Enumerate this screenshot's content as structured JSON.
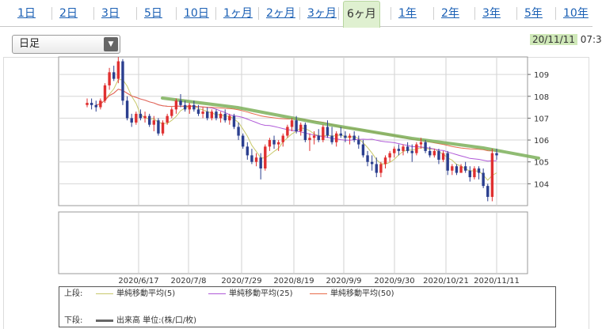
{
  "tabs": [
    {
      "label": "1日",
      "x": 22
    },
    {
      "label": "2日",
      "x": 75
    },
    {
      "label": "3日",
      "x": 128
    },
    {
      "label": "5日",
      "x": 182
    },
    {
      "label": "10日",
      "x": 232
    },
    {
      "label": "1ヶ月",
      "x": 282
    },
    {
      "label": "2ヶ月",
      "x": 336
    },
    {
      "label": "3ヶ月",
      "x": 388
    },
    {
      "label": "6ヶ月",
      "x": 437,
      "active": true
    },
    {
      "label": "1年",
      "x": 503
    },
    {
      "label": "2年",
      "x": 557
    },
    {
      "label": "3年",
      "x": 609
    },
    {
      "label": "5年",
      "x": 662
    },
    {
      "label": "10年",
      "x": 711
    }
  ],
  "select": {
    "value": "日足"
  },
  "date_badge": {
    "date": "20/11/11",
    "time": "07:3"
  },
  "legend": {
    "upper_label": "上段:",
    "lower_label": "下段:",
    "items": [
      {
        "label": "単純移動平均(5)",
        "color": "#c8c86a"
      },
      {
        "label": "単純移動平均(25)",
        "color": "#b05ad8"
      },
      {
        "label": "単純移動平均(50)",
        "color": "#e86a4a"
      }
    ],
    "volume": {
      "label": "出来高 単位:(株/口/枚)",
      "color": "#666666"
    }
  },
  "chart_data": {
    "type": "candlestick",
    "x_ticks": [
      "2020/6/17",
      "2020/7/8",
      "2020/7/29",
      "2020/8/19",
      "2020/9/9",
      "2020/9/30",
      "2020/10/21",
      "2020/11/11"
    ],
    "y_ticks": [
      104,
      105,
      106,
      107,
      108,
      109
    ],
    "ylim": [
      103.0,
      109.8
    ],
    "series": [
      {
        "name": "単純移動平均(5)",
        "color": "#c8c86a"
      },
      {
        "name": "単純移動平均(25)",
        "color": "#b05ad8"
      },
      {
        "name": "単純移動平均(50)",
        "color": "#e86a4a"
      }
    ],
    "candles": [
      [
        107.6,
        107.9,
        107.5,
        107.7
      ],
      [
        107.7,
        107.9,
        107.4,
        107.6
      ],
      [
        107.6,
        107.8,
        107.3,
        107.5
      ],
      [
        107.5,
        107.9,
        107.4,
        107.8
      ],
      [
        107.8,
        108.6,
        107.7,
        108.5
      ],
      [
        108.5,
        109.3,
        108.3,
        109.1
      ],
      [
        109.1,
        109.4,
        108.7,
        108.8
      ],
      [
        108.8,
        109.8,
        108.6,
        109.6
      ],
      [
        109.6,
        109.7,
        107.6,
        107.8
      ],
      [
        107.8,
        108.0,
        106.9,
        107.0
      ],
      [
        107.0,
        107.2,
        106.6,
        106.8
      ],
      [
        106.8,
        107.3,
        106.7,
        107.2
      ],
      [
        107.2,
        107.4,
        106.9,
        107.0
      ],
      [
        107.0,
        107.3,
        106.8,
        107.1
      ],
      [
        107.1,
        107.2,
        106.6,
        106.7
      ],
      [
        106.7,
        107.1,
        106.4,
        106.9
      ],
      [
        106.9,
        107.0,
        106.2,
        106.3
      ],
      [
        106.3,
        106.9,
        106.2,
        106.8
      ],
      [
        106.8,
        107.2,
        106.7,
        107.1
      ],
      [
        107.1,
        107.5,
        107.0,
        107.4
      ],
      [
        107.4,
        107.9,
        107.2,
        107.8
      ],
      [
        107.8,
        108.1,
        107.5,
        107.6
      ],
      [
        107.6,
        107.8,
        107.3,
        107.4
      ],
      [
        107.4,
        107.7,
        107.2,
        107.6
      ],
      [
        107.6,
        107.8,
        107.3,
        107.4
      ],
      [
        107.4,
        107.6,
        107.1,
        107.2
      ],
      [
        107.2,
        107.5,
        107.0,
        107.3
      ],
      [
        107.3,
        107.5,
        106.9,
        107.0
      ],
      [
        107.0,
        107.4,
        106.9,
        107.3
      ],
      [
        107.3,
        107.4,
        106.9,
        107.0
      ],
      [
        107.0,
        107.3,
        106.8,
        107.2
      ],
      [
        107.2,
        107.4,
        106.8,
        106.9
      ],
      [
        106.9,
        107.2,
        106.7,
        107.1
      ],
      [
        107.1,
        107.2,
        106.5,
        106.6
      ],
      [
        106.6,
        106.8,
        106.0,
        106.2
      ],
      [
        106.2,
        106.3,
        105.6,
        105.7
      ],
      [
        105.7,
        105.9,
        105.1,
        105.3
      ],
      [
        105.3,
        105.6,
        104.9,
        105.0
      ],
      [
        105.0,
        105.4,
        104.8,
        105.2
      ],
      [
        105.2,
        105.4,
        104.2,
        104.7
      ],
      [
        104.7,
        105.8,
        104.6,
        105.7
      ],
      [
        105.7,
        106.1,
        105.5,
        106.0
      ],
      [
        106.0,
        106.2,
        105.6,
        105.8
      ],
      [
        105.8,
        106.0,
        105.5,
        105.9
      ],
      [
        105.9,
        106.3,
        105.7,
        106.2
      ],
      [
        106.2,
        106.7,
        106.1,
        106.6
      ],
      [
        106.6,
        107.0,
        106.4,
        106.9
      ],
      [
        106.9,
        107.1,
        106.3,
        106.4
      ],
      [
        106.4,
        106.8,
        106.2,
        106.7
      ],
      [
        106.7,
        106.8,
        105.9,
        106.0
      ],
      [
        106.0,
        106.3,
        105.5,
        106.1
      ],
      [
        106.1,
        106.4,
        105.8,
        106.2
      ],
      [
        106.2,
        106.5,
        105.9,
        106.0
      ],
      [
        106.0,
        106.7,
        105.9,
        106.6
      ],
      [
        106.6,
        106.9,
        106.1,
        106.2
      ],
      [
        106.2,
        106.6,
        105.8,
        105.9
      ],
      [
        105.9,
        106.4,
        105.7,
        106.3
      ],
      [
        106.3,
        106.6,
        106.1,
        106.2
      ],
      [
        106.2,
        106.4,
        105.9,
        106.1
      ],
      [
        106.1,
        106.3,
        105.8,
        106.2
      ],
      [
        106.2,
        106.4,
        105.9,
        106.0
      ],
      [
        106.0,
        106.2,
        105.6,
        105.8
      ],
      [
        105.8,
        106.0,
        105.2,
        105.3
      ],
      [
        105.3,
        105.5,
        104.8,
        105.0
      ],
      [
        105.0,
        105.3,
        104.6,
        104.9
      ],
      [
        104.9,
        105.2,
        104.3,
        104.5
      ],
      [
        104.5,
        105.0,
        104.3,
        104.9
      ],
      [
        104.9,
        105.3,
        104.7,
        105.2
      ],
      [
        105.2,
        105.5,
        105.0,
        105.4
      ],
      [
        105.4,
        105.7,
        105.2,
        105.6
      ],
      [
        105.6,
        105.8,
        105.3,
        105.5
      ],
      [
        105.5,
        105.8,
        105.3,
        105.7
      ],
      [
        105.7,
        105.9,
        105.4,
        105.5
      ],
      [
        105.5,
        105.8,
        105.0,
        105.4
      ],
      [
        105.4,
        105.9,
        105.3,
        105.8
      ],
      [
        105.8,
        106.1,
        105.6,
        105.9
      ],
      [
        105.9,
        106.0,
        105.4,
        105.5
      ],
      [
        105.5,
        105.7,
        105.2,
        105.3
      ],
      [
        105.3,
        105.6,
        105.2,
        105.5
      ],
      [
        105.5,
        105.6,
        104.9,
        105.1
      ],
      [
        105.1,
        105.5,
        105.0,
        105.4
      ],
      [
        105.4,
        105.5,
        104.4,
        104.6
      ],
      [
        104.6,
        104.9,
        104.4,
        104.8
      ],
      [
        104.8,
        104.9,
        104.4,
        104.5
      ],
      [
        104.5,
        104.9,
        104.5,
        104.8
      ],
      [
        104.8,
        105.0,
        104.5,
        104.6
      ],
      [
        104.6,
        104.8,
        104.1,
        104.3
      ],
      [
        104.3,
        104.8,
        104.2,
        104.7
      ],
      [
        104.7,
        104.8,
        104.2,
        104.5
      ],
      [
        104.5,
        104.7,
        103.8,
        103.9
      ],
      [
        103.9,
        104.0,
        103.2,
        103.4
      ],
      [
        103.4,
        105.6,
        103.2,
        105.4
      ],
      [
        105.4,
        105.6,
        105.1,
        105.3
      ]
    ]
  }
}
